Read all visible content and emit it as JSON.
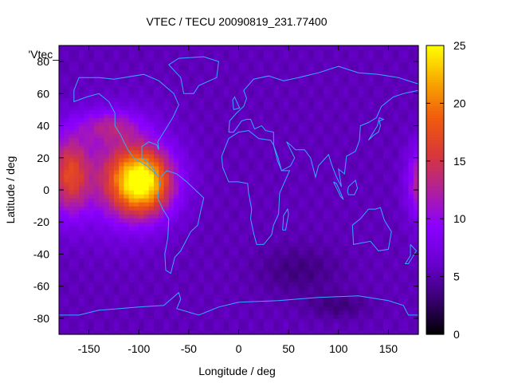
{
  "chart_data": {
    "type": "heatmap",
    "title": "VTEC / TECU 20090819_231.77400",
    "xlabel": "Longitude / deg",
    "ylabel": "Latitude / deg",
    "legend_key": "'Vtec_",
    "xlim": [
      -180,
      180
    ],
    "ylim": [
      -90,
      90
    ],
    "x_ticks": [
      -150,
      -100,
      -50,
      0,
      50,
      100,
      150
    ],
    "y_ticks": [
      -80,
      -60,
      -40,
      -20,
      0,
      20,
      40,
      60,
      80
    ],
    "colorbar": {
      "range": [
        0,
        25
      ],
      "ticks": [
        0,
        5,
        10,
        15,
        20,
        25
      ],
      "palette": [
        "#000000",
        "#3a0073",
        "#6a00d0",
        "#8a00ff",
        "#b0209a",
        "#d83838",
        "#f05b0e",
        "#f8a800",
        "#ffff00"
      ]
    },
    "grid": false,
    "coastline_color": "#33aaff",
    "field": {
      "background": 5.5,
      "features": [
        {
          "lon": -97,
          "lat": 5,
          "amp": 17,
          "sx": 30,
          "sy": 20
        },
        {
          "lon": -118,
          "lat": 10,
          "amp": 6,
          "sx": 45,
          "sy": 32
        },
        {
          "lon": -170,
          "lat": 10,
          "amp": 10,
          "sx": 20,
          "sy": 25
        },
        {
          "lon": 185,
          "lat": 5,
          "amp": 9,
          "sx": 15,
          "sy": 22
        },
        {
          "lon": -130,
          "lat": 40,
          "amp": 5,
          "sx": 30,
          "sy": 10
        },
        {
          "lon": 60,
          "lat": -50,
          "amp": -2,
          "sx": 40,
          "sy": 15
        },
        {
          "lon": 100,
          "lat": -72,
          "amp": -2,
          "sx": 30,
          "sy": 8
        }
      ]
    }
  }
}
